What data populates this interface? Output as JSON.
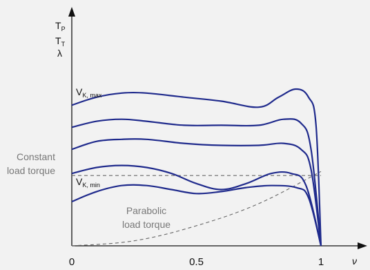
{
  "chart_data": {
    "type": "line",
    "title": "",
    "xlabel": "ν",
    "ylabel": [
      "T_P",
      "T_T",
      "λ"
    ],
    "xlim": [
      0,
      1
    ],
    "x_ticks": [
      "0",
      "0.5",
      "1"
    ],
    "grid": false,
    "series": [
      {
        "name": "V_K, max",
        "x": [
          0,
          0.1,
          0.2,
          0.3,
          0.45,
          0.6,
          0.75,
          0.83,
          0.9,
          0.95,
          0.98,
          1.0
        ],
        "y": [
          0.7,
          0.74,
          0.76,
          0.76,
          0.74,
          0.72,
          0.69,
          0.74,
          0.78,
          0.74,
          0.6,
          0.0
        ]
      },
      {
        "name": "",
        "x": [
          0,
          0.1,
          0.2,
          0.3,
          0.45,
          0.6,
          0.75,
          0.85,
          0.92,
          0.96,
          1.0
        ],
        "y": [
          0.59,
          0.62,
          0.63,
          0.62,
          0.6,
          0.6,
          0.6,
          0.63,
          0.61,
          0.48,
          0.0
        ]
      },
      {
        "name": "",
        "x": [
          0,
          0.1,
          0.2,
          0.3,
          0.45,
          0.6,
          0.75,
          0.85,
          0.92,
          0.96,
          1.0
        ],
        "y": [
          0.48,
          0.52,
          0.53,
          0.53,
          0.51,
          0.5,
          0.5,
          0.51,
          0.48,
          0.38,
          0.0
        ]
      },
      {
        "name": "",
        "x": [
          0,
          0.1,
          0.2,
          0.3,
          0.4,
          0.5,
          0.6,
          0.7,
          0.8,
          0.88,
          0.94,
          1.0
        ],
        "y": [
          0.36,
          0.39,
          0.4,
          0.39,
          0.36,
          0.31,
          0.28,
          0.31,
          0.36,
          0.36,
          0.3,
          0.0
        ]
      },
      {
        "name": "V_K, min",
        "x": [
          0,
          0.1,
          0.2,
          0.3,
          0.4,
          0.5,
          0.6,
          0.7,
          0.8,
          0.9,
          0.95,
          1.0
        ],
        "y": [
          0.22,
          0.27,
          0.3,
          0.3,
          0.28,
          0.26,
          0.27,
          0.29,
          0.3,
          0.29,
          0.24,
          0.0
        ]
      }
    ],
    "reference_lines": [
      {
        "label": "Constant load torque",
        "type": "constant",
        "y": 0.35,
        "x_end": 1.0
      },
      {
        "label": "Parabolic load torque",
        "type": "parabola",
        "x": [
          0,
          0.25,
          0.5,
          0.75,
          1.0
        ],
        "y": [
          0.0,
          0.025,
          0.1,
          0.21,
          0.37
        ]
      }
    ]
  }
}
